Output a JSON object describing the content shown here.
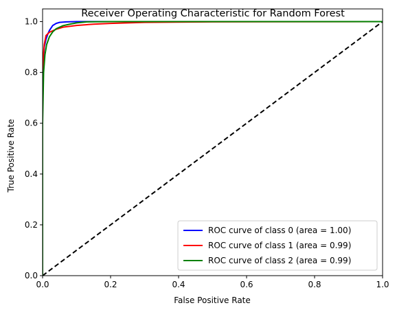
{
  "chart_data": {
    "type": "line",
    "title": "Receiver Operating Characteristic for Random Forest",
    "xlabel": "False Positive Rate",
    "ylabel": "True Positive Rate",
    "xlim": [
      0.0,
      1.0
    ],
    "ylim": [
      0.0,
      1.05
    ],
    "x_ticks": [
      0.0,
      0.2,
      0.4,
      0.6,
      0.8,
      1.0
    ],
    "x_tick_labels": [
      "0.0",
      "0.2",
      "0.4",
      "0.6",
      "0.8",
      "1.0"
    ],
    "y_ticks": [
      0.0,
      0.2,
      0.4,
      0.6,
      0.8,
      1.0
    ],
    "y_tick_labels": [
      "0.0",
      "0.2",
      "0.4",
      "0.6",
      "0.8",
      "1.0"
    ],
    "grid": false,
    "legend_position": "lower-right",
    "series": [
      {
        "name": "ROC curve of class 0 (area = 1.00)",
        "color": "#0000ff",
        "x": [
          0.0,
          0.0,
          0.002,
          0.005,
          0.01,
          0.015,
          0.02,
          0.03,
          0.04,
          0.05,
          0.07,
          0.1,
          0.2,
          1.0
        ],
        "y": [
          0.0,
          0.7,
          0.84,
          0.9,
          0.93,
          0.95,
          0.965,
          0.985,
          0.993,
          0.997,
          0.999,
          1.0,
          1.0,
          1.0
        ]
      },
      {
        "name": "ROC curve of class 1 (area = 0.99)",
        "color": "#ff0000",
        "x": [
          0.0,
          0.0,
          0.002,
          0.005,
          0.01,
          0.02,
          0.04,
          0.06,
          0.1,
          0.15,
          0.2,
          0.3,
          0.5,
          1.0
        ],
        "y": [
          0.0,
          0.78,
          0.86,
          0.91,
          0.945,
          0.958,
          0.97,
          0.978,
          0.985,
          0.99,
          0.993,
          0.997,
          0.999,
          1.0
        ]
      },
      {
        "name": "ROC curve of class 2 (area = 0.99)",
        "color": "#008000",
        "x": [
          0.0,
          0.0,
          0.003,
          0.007,
          0.012,
          0.02,
          0.03,
          0.04,
          0.06,
          0.08,
          0.1,
          0.13,
          0.2,
          1.0
        ],
        "y": [
          0.0,
          0.6,
          0.8,
          0.87,
          0.91,
          0.94,
          0.96,
          0.972,
          0.984,
          0.99,
          0.995,
          0.999,
          1.0,
          1.0
        ]
      }
    ],
    "reference_line": {
      "x": [
        0.0,
        1.0
      ],
      "y": [
        0.0,
        1.0
      ],
      "color": "#000000",
      "style": "dashed"
    }
  }
}
